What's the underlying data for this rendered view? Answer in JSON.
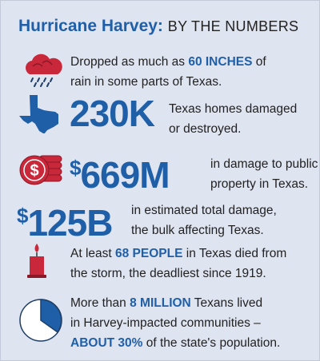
{
  "header": {
    "title": "Hurricane Harvey:",
    "subtitle": "BY THE NUMBERS"
  },
  "items": [
    {
      "lines": [
        [
          {
            "text": "Dropped as much as "
          },
          {
            "text": "60 INCHES",
            "highlight": true
          },
          {
            "text": " of"
          }
        ],
        [
          {
            "text": "rain in some parts of Texas."
          }
        ]
      ]
    },
    {
      "figure": "230K",
      "lines": [
        [
          {
            "text": "Texas homes damaged"
          }
        ],
        [
          {
            "text": "or destroyed."
          }
        ]
      ]
    },
    {
      "figure": "$669M",
      "lines": [
        [
          {
            "text": "in damage to public"
          }
        ],
        [
          {
            "text": "property in Texas."
          }
        ]
      ]
    },
    {
      "figure": "$125B",
      "lines": [
        [
          {
            "text": "in estimated total damage,"
          }
        ],
        [
          {
            "text": "the bulk affecting Texas."
          }
        ]
      ]
    },
    {
      "lines": [
        [
          {
            "text": "At least "
          },
          {
            "text": "68 PEOPLE",
            "highlight": true
          },
          {
            "text": " in Texas died from"
          }
        ],
        [
          {
            "text": "the storm, the deadliest since 1919."
          }
        ]
      ]
    },
    {
      "lines": [
        [
          {
            "text": "More than "
          },
          {
            "text": "8 MILLION",
            "highlight": true
          },
          {
            "text": " Texans lived"
          }
        ],
        [
          {
            "text": "in Harvey-impacted communities –"
          }
        ],
        [
          {
            "text": "ABOUT 30%",
            "highlight": true
          },
          {
            "text": " of the state's population."
          }
        ]
      ]
    }
  ]
}
